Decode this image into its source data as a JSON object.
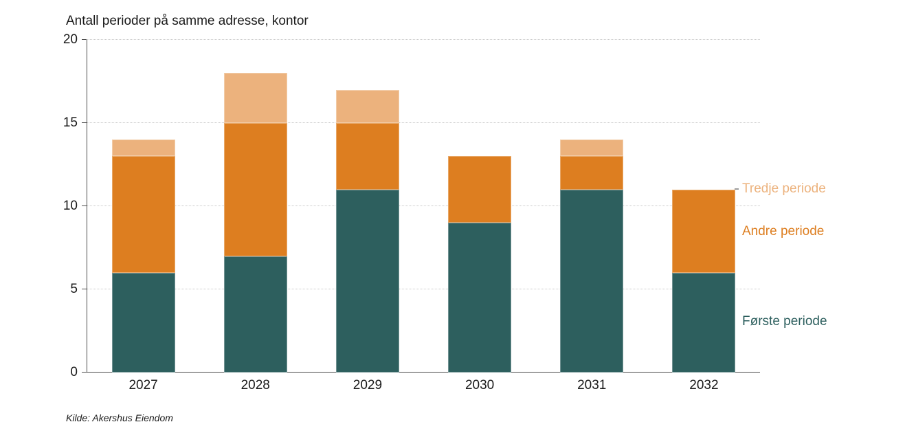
{
  "page": {
    "background": "#ffffff"
  },
  "chart_data": {
    "type": "bar",
    "stacked": true,
    "title": "Antall perioder på samme adresse, kontor",
    "categories": [
      "2027",
      "2028",
      "2029",
      "2030",
      "2031",
      "2032"
    ],
    "series": [
      {
        "name": "Første periode",
        "color": "#2d5f5e",
        "values": [
          6,
          7,
          11,
          9,
          11,
          6
        ]
      },
      {
        "name": "Andre periode",
        "color": "#dd7e20",
        "values": [
          7,
          8,
          4,
          4,
          2,
          5
        ]
      },
      {
        "name": "Tredje periode",
        "color": "#ecb27d",
        "values": [
          1,
          3,
          2,
          0,
          1,
          0
        ]
      }
    ],
    "stack_totals": [
      14,
      18,
      17,
      13,
      14,
      11
    ],
    "xlabel": "",
    "ylabel": "",
    "ylim": [
      0,
      20
    ],
    "yticks": [
      0,
      5,
      10,
      15,
      20
    ],
    "grid": "horizontal-dotted",
    "gridline_color": "#c9c9c9",
    "axis_color": "#4a4a4a",
    "text_color": "#1a1a1a",
    "legend_position": "right-inline-labels",
    "source": "Kilde: Akershus Eiendom"
  }
}
